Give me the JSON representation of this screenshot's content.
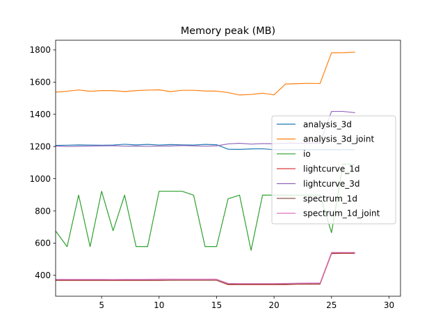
{
  "chart_data": {
    "type": "line",
    "title": "Memory peak (MB)",
    "xlabel": "",
    "ylabel": "",
    "xlim": [
      1,
      31
    ],
    "ylim": [
      270,
      1860
    ],
    "xticks": [
      5,
      10,
      15,
      20,
      25,
      30
    ],
    "yticks": [
      400,
      600,
      800,
      1000,
      1200,
      1400,
      1600,
      1800
    ],
    "grid": false,
    "legend_position": "center-right",
    "x": [
      1,
      2,
      3,
      4,
      5,
      6,
      7,
      8,
      9,
      10,
      11,
      12,
      13,
      14,
      15,
      16,
      17,
      18,
      19,
      20,
      21,
      22,
      23,
      24,
      25,
      26,
      27
    ],
    "series": [
      {
        "name": "analysis_3d",
        "color": "#1f77b4",
        "values": [
          1207,
          1208,
          1210,
          1209,
          1208,
          1209,
          1214,
          1210,
          1213,
          1209,
          1212,
          1210,
          1209,
          1213,
          1211,
          1183,
          1182,
          1185,
          1186,
          1180,
          1180,
          1180,
          1180,
          1180,
          1180,
          1180,
          1180
        ]
      },
      {
        "name": "analysis_3d_joint",
        "color": "#ff7f0e",
        "values": [
          1538,
          1543,
          1551,
          1543,
          1547,
          1547,
          1541,
          1547,
          1550,
          1552,
          1541,
          1549,
          1549,
          1545,
          1544,
          1535,
          1520,
          1523,
          1531,
          1521,
          1588,
          1590,
          1592,
          1591,
          1782,
          1783,
          1786
        ]
      },
      {
        "name": "io",
        "color": "#2ca02c",
        "values": [
          675,
          578,
          898,
          578,
          922,
          677,
          898,
          578,
          578,
          922,
          922,
          922,
          898,
          578,
          578,
          875,
          898,
          555,
          898,
          898,
          898,
          898,
          898,
          898,
          665,
          1090,
          1090
        ]
      },
      {
        "name": "lightcurve_1d",
        "color": "#d62728",
        "values": [
          368,
          368,
          368,
          368,
          368,
          368,
          368,
          368,
          368,
          368,
          369,
          369,
          369,
          369,
          369,
          342,
          342,
          342,
          342,
          342,
          342,
          345,
          345,
          345,
          535,
          536,
          536
        ]
      },
      {
        "name": "lightcurve_3d",
        "color": "#9467bd",
        "values": [
          1203,
          1200,
          1201,
          1203,
          1204,
          1205,
          1202,
          1203,
          1201,
          1203,
          1203,
          1206,
          1204,
          1202,
          1204,
          1216,
          1220,
          1215,
          1218,
          1217,
          1220,
          1220,
          1220,
          1220,
          1418,
          1418,
          1410
        ]
      },
      {
        "name": "spectrum_1d",
        "color": "#8c564b",
        "values": [
          370,
          370,
          370,
          370,
          370,
          370,
          370,
          370,
          370,
          370,
          370,
          370,
          370,
          370,
          370,
          345,
          345,
          345,
          345,
          345,
          345,
          347,
          347,
          347,
          538,
          538,
          538
        ]
      },
      {
        "name": "spectrum_1d_joint",
        "color": "#e377c2",
        "values": [
          375,
          375,
          375,
          375,
          375,
          374,
          375,
          375,
          375,
          376,
          376,
          376,
          376,
          376,
          376,
          350,
          349,
          349,
          349,
          349,
          350,
          351,
          352,
          352,
          542,
          542,
          542
        ]
      }
    ]
  }
}
